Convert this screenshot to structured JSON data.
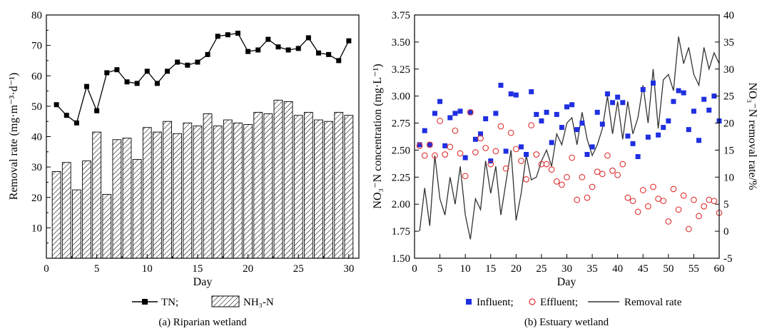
{
  "chart_data": [
    {
      "type": "bar",
      "caption": "(a) Riparian wetland",
      "xlabel": "Day",
      "ylabel": "Removal rate (mg·m⁻³·d⁻¹)",
      "xlim": [
        0,
        31
      ],
      "ylim": [
        0,
        80
      ],
      "xticks": [
        0,
        5,
        10,
        15,
        20,
        25,
        30
      ],
      "yticks": [
        10,
        20,
        30,
        40,
        50,
        60,
        70,
        80
      ],
      "legend": [
        {
          "label": "TN;",
          "marker": "square-line"
        },
        {
          "label": "NH₃-N",
          "marker": "hatched-bar"
        }
      ],
      "x": [
        1,
        2,
        3,
        4,
        5,
        6,
        7,
        8,
        9,
        10,
        11,
        12,
        13,
        14,
        15,
        16,
        17,
        18,
        19,
        20,
        21,
        22,
        23,
        24,
        25,
        26,
        27,
        28,
        29,
        30
      ],
      "series": [
        {
          "name": "NH₃-N",
          "kind": "bar",
          "values": [
            28.5,
            31.5,
            22.5,
            32,
            41.5,
            21,
            39,
            39.5,
            32.5,
            43,
            41.5,
            45,
            41,
            44.5,
            43.5,
            47.5,
            43.5,
            45.5,
            44.5,
            44,
            48,
            47.5,
            52,
            51.5,
            47,
            48,
            45.5,
            45,
            48,
            47
          ]
        },
        {
          "name": "TN",
          "kind": "line",
          "values": [
            50.5,
            47,
            44.5,
            56.5,
            48.5,
            61,
            62,
            58,
            57.5,
            61.5,
            57.5,
            61.5,
            64.5,
            63.5,
            64.5,
            67,
            73,
            73.5,
            74,
            68,
            68.5,
            72,
            69.5,
            68.5,
            69,
            72.5,
            67.5,
            67,
            65,
            71.5
          ]
        }
      ]
    },
    {
      "type": "scatter",
      "caption": "(b) Estuary wetland",
      "xlabel": "Day",
      "ylabel": "NO₃⁻N concentration (mg·L⁻¹)",
      "y2label": "NO₃⁻N removal rate/%",
      "xlim": [
        0,
        60
      ],
      "ylim": [
        1.5,
        3.75
      ],
      "y2lim": [
        -5,
        40
      ],
      "xticks": [
        0,
        5,
        10,
        15,
        20,
        25,
        30,
        35,
        40,
        45,
        50,
        55,
        60
      ],
      "yticks": [
        "1.50",
        "1.75",
        "2.00",
        "2.25",
        "2.50",
        "2.75",
        "3.00",
        "3.25",
        "3.50",
        "3.75"
      ],
      "y2ticks": [
        -5,
        0,
        5,
        10,
        15,
        20,
        25,
        30,
        35,
        40
      ],
      "legend": [
        {
          "label": "Influent;",
          "marker": "blue-square"
        },
        {
          "label": "Effluent;",
          "marker": "red-circle"
        },
        {
          "label": "Removal rate",
          "marker": "line"
        }
      ],
      "colors": {
        "influent": "#1f2fe0",
        "effluent": "#e03030",
        "removal": "#333333"
      },
      "series": [
        {
          "name": "Influent",
          "kind": "scatter",
          "points": [
            [
              1,
              2.55
            ],
            [
              2,
              2.68
            ],
            [
              3,
              2.55
            ],
            [
              4,
              2.84
            ],
            [
              5,
              2.95
            ],
            [
              6,
              2.54
            ],
            [
              7,
              2.8
            ],
            [
              8,
              2.84
            ],
            [
              9,
              2.86
            ],
            [
              10,
              2.43
            ],
            [
              11,
              2.85
            ],
            [
              12,
              2.6
            ],
            [
              13,
              2.65
            ],
            [
              14,
              2.79
            ],
            [
              15,
              2.4
            ],
            [
              16,
              2.84
            ],
            [
              17,
              3.1
            ],
            [
              18,
              2.49
            ],
            [
              19,
              3.02
            ],
            [
              20,
              3.01
            ],
            [
              21,
              2.53
            ],
            [
              22,
              2.46
            ],
            [
              23,
              3.04
            ],
            [
              24,
              2.83
            ],
            [
              25,
              2.77
            ],
            [
              26,
              2.85
            ],
            [
              27,
              2.57
            ],
            [
              28,
              2.83
            ],
            [
              29,
              2.71
            ],
            [
              30,
              2.9
            ],
            [
              31,
              2.92
            ],
            [
              32,
              2.69
            ],
            [
              33,
              2.75
            ],
            [
              34,
              2.46
            ],
            [
              35,
              2.53
            ],
            [
              36,
              2.85
            ],
            [
              37,
              2.74
            ],
            [
              38,
              3.02
            ],
            [
              39,
              2.94
            ],
            [
              40,
              2.99
            ],
            [
              41,
              2.94
            ],
            [
              42,
              2.63
            ],
            [
              43,
              2.56
            ],
            [
              44,
              2.44
            ],
            [
              45,
              3.06
            ],
            [
              46,
              2.62
            ],
            [
              47,
              3.12
            ],
            [
              48,
              2.64
            ],
            [
              49,
              2.71
            ],
            [
              50,
              2.77
            ],
            [
              51,
              2.95
            ],
            [
              52,
              3.05
            ],
            [
              53,
              3.03
            ],
            [
              54,
              2.69
            ],
            [
              55,
              2.86
            ],
            [
              56,
              2.59
            ],
            [
              57,
              2.97
            ],
            [
              58,
              2.87
            ],
            [
              59,
              3.0
            ],
            [
              60,
              2.77
            ]
          ]
        },
        {
          "name": "Effluent",
          "kind": "scatter",
          "points": [
            [
              1,
              2.54
            ],
            [
              2,
              2.45
            ],
            [
              3,
              2.55
            ],
            [
              4,
              2.45
            ],
            [
              5,
              2.77
            ],
            [
              6,
              2.46
            ],
            [
              7,
              2.53
            ],
            [
              8,
              2.68
            ],
            [
              9,
              2.47
            ],
            [
              10,
              2.26
            ],
            [
              11,
              2.85
            ],
            [
              12,
              2.48
            ],
            [
              13,
              2.61
            ],
            [
              14,
              2.52
            ],
            [
              15,
              2.37
            ],
            [
              16,
              2.49
            ],
            [
              17,
              2.72
            ],
            [
              18,
              2.33
            ],
            [
              19,
              2.66
            ],
            [
              20,
              2.51
            ],
            [
              21,
              2.4
            ],
            [
              22,
              2.23
            ],
            [
              23,
              2.73
            ],
            [
              24,
              2.46
            ],
            [
              25,
              2.37
            ],
            [
              26,
              2.37
            ],
            [
              27,
              2.32
            ],
            [
              28,
              2.21
            ],
            [
              29,
              2.18
            ],
            [
              30,
              2.25
            ],
            [
              31,
              2.43
            ],
            [
              32,
              2.04
            ],
            [
              33,
              2.25
            ],
            [
              34,
              2.06
            ],
            [
              35,
              2.16
            ],
            [
              36,
              2.3
            ],
            [
              37,
              2.28
            ],
            [
              38,
              2.45
            ],
            [
              39,
              2.31
            ],
            [
              40,
              2.27
            ],
            [
              41,
              2.37
            ],
            [
              42,
              2.06
            ],
            [
              43,
              2.03
            ],
            [
              44,
              1.93
            ],
            [
              45,
              2.13
            ],
            [
              46,
              1.98
            ],
            [
              47,
              2.16
            ],
            [
              48,
              2.05
            ],
            [
              49,
              2.03
            ],
            [
              50,
              1.84
            ],
            [
              51,
              2.14
            ],
            [
              52,
              1.95
            ],
            [
              53,
              2.08
            ],
            [
              54,
              1.77
            ],
            [
              55,
              2.04
            ],
            [
              56,
              1.89
            ],
            [
              57,
              1.98
            ],
            [
              58,
              2.04
            ],
            [
              59,
              2.03
            ],
            [
              60,
              1.92
            ]
          ]
        },
        {
          "name": "Removal rate",
          "kind": "line",
          "axis": "right",
          "points": [
            [
              1,
              0
            ],
            [
              2,
              8
            ],
            [
              3,
              1
            ],
            [
              4,
              14
            ],
            [
              5,
              6
            ],
            [
              6,
              3
            ],
            [
              7,
              10
            ],
            [
              8,
              5
            ],
            [
              9,
              12
            ],
            [
              10,
              3
            ],
            [
              11,
              -1.5
            ],
            [
              12,
              6
            ],
            [
              13,
              4
            ],
            [
              14,
              13
            ],
            [
              15,
              7
            ],
            [
              16,
              12
            ],
            [
              17,
              3
            ],
            [
              18,
              9
            ],
            [
              19,
              15
            ],
            [
              20,
              2
            ],
            [
              21,
              7
            ],
            [
              22,
              14
            ],
            [
              23,
              9.5
            ],
            [
              24,
              10
            ],
            [
              25,
              13
            ],
            [
              26,
              15
            ],
            [
              27,
              12
            ],
            [
              28,
              18
            ],
            [
              29,
              16
            ],
            [
              30,
              20
            ],
            [
              31,
              21
            ],
            [
              32,
              16
            ],
            [
              33,
              22
            ],
            [
              34,
              17
            ],
            [
              35,
              14
            ],
            [
              36,
              16
            ],
            [
              37,
              19
            ],
            [
              38,
              25
            ],
            [
              39,
              18
            ],
            [
              40,
              24
            ],
            [
              41,
              17
            ],
            [
              42,
              24
            ],
            [
              43,
              18
            ],
            [
              44,
              21
            ],
            [
              45,
              27
            ],
            [
              46,
              20
            ],
            [
              47,
              30
            ],
            [
              48,
              19
            ],
            [
              49,
              28
            ],
            [
              50,
              29
            ],
            [
              51,
              26
            ],
            [
              52,
              36
            ],
            [
              53,
              31
            ],
            [
              54,
              34
            ],
            [
              55,
              29
            ],
            [
              56,
              27
            ],
            [
              57,
              34
            ],
            [
              58,
              30
            ],
            [
              59,
              33
            ],
            [
              60,
              31
            ]
          ]
        }
      ]
    }
  ]
}
